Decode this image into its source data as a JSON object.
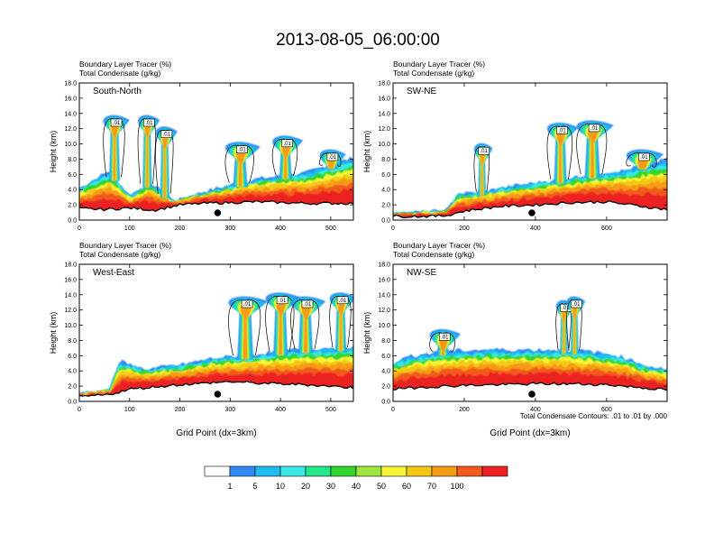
{
  "title": "2013-08-05_06:00:00",
  "legend_colors": [
    "#ffffff",
    "#2f8af5",
    "#1ebcf0",
    "#39e8e2",
    "#22e88b",
    "#32d42e",
    "#a0e640",
    "#f5f536",
    "#f5c814",
    "#f59b14",
    "#f25a1e",
    "#ec2020"
  ],
  "colorbar": {
    "labels": [
      "1",
      "5",
      "10",
      "20",
      "30",
      "40",
      "50",
      "60",
      "70",
      "100"
    ]
  },
  "contour_note": "Total Condensate Contours: .01 to .01 by .000",
  "contour_label": ".01",
  "chart_data": [
    {
      "type": "heatmap",
      "panel": "South-North",
      "title": "South-North",
      "subtitle_lines": [
        "Boundary Layer Tracer    (%)",
        "Total Condensate    (g/kg)"
      ],
      "xlabel": "",
      "ylabel": "Height (km)",
      "xlim": [
        0,
        545
      ],
      "ylim": [
        0,
        18
      ],
      "xticks": [
        0,
        100,
        200,
        300,
        400,
        500
      ],
      "xtick_labels": [
        "0",
        "100",
        "200",
        "300",
        "400",
        "500"
      ],
      "yticks": [
        0,
        2,
        4,
        6,
        8,
        10,
        12,
        14,
        16,
        18
      ],
      "ytick_labels": [
        "0.0",
        "2.0",
        "4.0",
        "6.0",
        "8.0",
        "10.0",
        "12.0",
        "14.0",
        "16.0",
        "18.0"
      ],
      "marker_x": 275,
      "terrain": [
        [
          0,
          1.5
        ],
        [
          50,
          1.4
        ],
        [
          100,
          1.6
        ],
        [
          150,
          1.3
        ],
        [
          200,
          2.0
        ],
        [
          250,
          2.2
        ],
        [
          300,
          2.3
        ],
        [
          350,
          2.4
        ],
        [
          400,
          2.3
        ],
        [
          450,
          2.2
        ],
        [
          500,
          2.2
        ],
        [
          545,
          2.2
        ]
      ],
      "bl_top": [
        [
          0,
          4.2
        ],
        [
          60,
          6.5
        ],
        [
          100,
          3.2
        ],
        [
          140,
          5.0
        ],
        [
          190,
          2.5
        ],
        [
          250,
          3.8
        ],
        [
          300,
          4.6
        ],
        [
          350,
          5.4
        ],
        [
          400,
          5.8
        ],
        [
          450,
          6.2
        ],
        [
          500,
          7.3
        ],
        [
          545,
          8.2
        ]
      ],
      "plumes": [
        [
          70,
          13.5,
          30
        ],
        [
          135,
          13.5,
          25
        ],
        [
          170,
          12.0,
          25
        ],
        [
          320,
          10.0,
          40
        ],
        [
          410,
          10.8,
          35
        ],
        [
          500,
          9.0,
          30
        ]
      ]
    },
    {
      "type": "heatmap",
      "panel": "SW-NE",
      "title": "SW-NE",
      "subtitle_lines": [
        "Boundary Layer Tracer    (%)",
        "Total Condensate    (g/kg)"
      ],
      "xlabel": "",
      "ylabel": "Height (km)",
      "xlim": [
        0,
        770
      ],
      "ylim": [
        0,
        18
      ],
      "xticks": [
        0,
        200,
        400,
        600
      ],
      "xtick_labels": [
        "0",
        "200",
        "400",
        "600"
      ],
      "yticks": [
        0,
        2,
        4,
        6,
        8,
        10,
        12,
        14,
        16,
        18
      ],
      "ytick_labels": [
        "0.0",
        "2.0",
        "4.0",
        "6.0",
        "8.0",
        "10.0",
        "12.0",
        "14.0",
        "16.0",
        "18.0"
      ],
      "marker_x": 390,
      "terrain": [
        [
          0,
          0.5
        ],
        [
          100,
          0.5
        ],
        [
          150,
          0.6
        ],
        [
          200,
          1.2
        ],
        [
          300,
          1.8
        ],
        [
          400,
          2.0
        ],
        [
          500,
          2.3
        ],
        [
          600,
          2.4
        ],
        [
          700,
          1.8
        ],
        [
          770,
          1.4
        ]
      ],
      "bl_top": [
        [
          0,
          0.9
        ],
        [
          150,
          1.2
        ],
        [
          180,
          3.4
        ],
        [
          260,
          3.8
        ],
        [
          350,
          4.6
        ],
        [
          450,
          5.2
        ],
        [
          550,
          6.0
        ],
        [
          650,
          6.5
        ],
        [
          700,
          7.2
        ],
        [
          770,
          8.0
        ]
      ],
      "plumes": [
        [
          250,
          9.8,
          30
        ],
        [
          470,
          12.5,
          50
        ],
        [
          560,
          12.8,
          60
        ],
        [
          700,
          9.0,
          60
        ]
      ]
    },
    {
      "type": "heatmap",
      "panel": "West-East",
      "title": "West-East",
      "subtitle_lines": [
        "Boundary Layer Tracer    (%)",
        "Total Condensate    (g/kg)"
      ],
      "xlabel": "Grid Point (dx=3km)",
      "ylabel": "Height (km)",
      "xlim": [
        0,
        545
      ],
      "ylim": [
        0,
        18
      ],
      "xticks": [
        0,
        100,
        200,
        300,
        400,
        500
      ],
      "xtick_labels": [
        "0",
        "100",
        "200",
        "300",
        "400",
        "500"
      ],
      "yticks": [
        0,
        2,
        4,
        6,
        8,
        10,
        12,
        14,
        16,
        18
      ],
      "ytick_labels": [
        "0.0",
        "2.0",
        "4.0",
        "6.0",
        "8.0",
        "10.0",
        "12.0",
        "14.0",
        "16.0",
        "18.0"
      ],
      "marker_x": 275,
      "terrain": [
        [
          0,
          0.6
        ],
        [
          60,
          0.9
        ],
        [
          100,
          1.6
        ],
        [
          150,
          1.9
        ],
        [
          200,
          2.2
        ],
        [
          250,
          2.4
        ],
        [
          300,
          2.6
        ],
        [
          350,
          2.4
        ],
        [
          400,
          2.3
        ],
        [
          450,
          2.2
        ],
        [
          500,
          2.0
        ],
        [
          545,
          1.8
        ]
      ],
      "bl_top": [
        [
          0,
          1.0
        ],
        [
          60,
          1.5
        ],
        [
          80,
          5.3
        ],
        [
          130,
          4.2
        ],
        [
          200,
          4.8
        ],
        [
          260,
          5.6
        ],
        [
          320,
          6.0
        ],
        [
          380,
          6.4
        ],
        [
          430,
          6.8
        ],
        [
          480,
          7.0
        ],
        [
          545,
          7.2
        ]
      ],
      "plumes": [
        [
          330,
          13.5,
          45
        ],
        [
          400,
          14.0,
          40
        ],
        [
          450,
          13.5,
          40
        ],
        [
          520,
          14.0,
          30
        ]
      ]
    },
    {
      "type": "heatmap",
      "panel": "NW-SE",
      "title": "NW-SE",
      "subtitle_lines": [
        "Boundary Layer Tracer    (%)",
        "Total Condensate    (g/kg)"
      ],
      "xlabel": "Grid Point (dx=3km)",
      "ylabel": "Height (km)",
      "xlim": [
        0,
        770
      ],
      "ylim": [
        0,
        18
      ],
      "xticks": [
        0,
        200,
        400,
        600
      ],
      "xtick_labels": [
        "0",
        "200",
        "400",
        "600"
      ],
      "yticks": [
        0,
        2,
        4,
        6,
        8,
        10,
        12,
        14,
        16,
        18
      ],
      "ytick_labels": [
        "0.0",
        "2.0",
        "4.0",
        "6.0",
        "8.0",
        "10.0",
        "12.0",
        "14.0",
        "16.0",
        "18.0"
      ],
      "marker_x": 390,
      "terrain": [
        [
          0,
          1.6
        ],
        [
          100,
          1.9
        ],
        [
          200,
          2.1
        ],
        [
          300,
          2.2
        ],
        [
          400,
          2.3
        ],
        [
          500,
          2.3
        ],
        [
          600,
          2.2
        ],
        [
          700,
          1.8
        ],
        [
          770,
          1.5
        ]
      ],
      "bl_top": [
        [
          0,
          5.0
        ],
        [
          50,
          6.0
        ],
        [
          150,
          6.6
        ],
        [
          250,
          6.8
        ],
        [
          350,
          6.8
        ],
        [
          450,
          6.8
        ],
        [
          550,
          6.6
        ],
        [
          650,
          5.8
        ],
        [
          700,
          4.8
        ],
        [
          770,
          4.2
        ]
      ],
      "plumes": [
        [
          480,
          13.0,
          30
        ],
        [
          510,
          13.5,
          30
        ],
        [
          140,
          9.2,
          50
        ]
      ]
    }
  ]
}
